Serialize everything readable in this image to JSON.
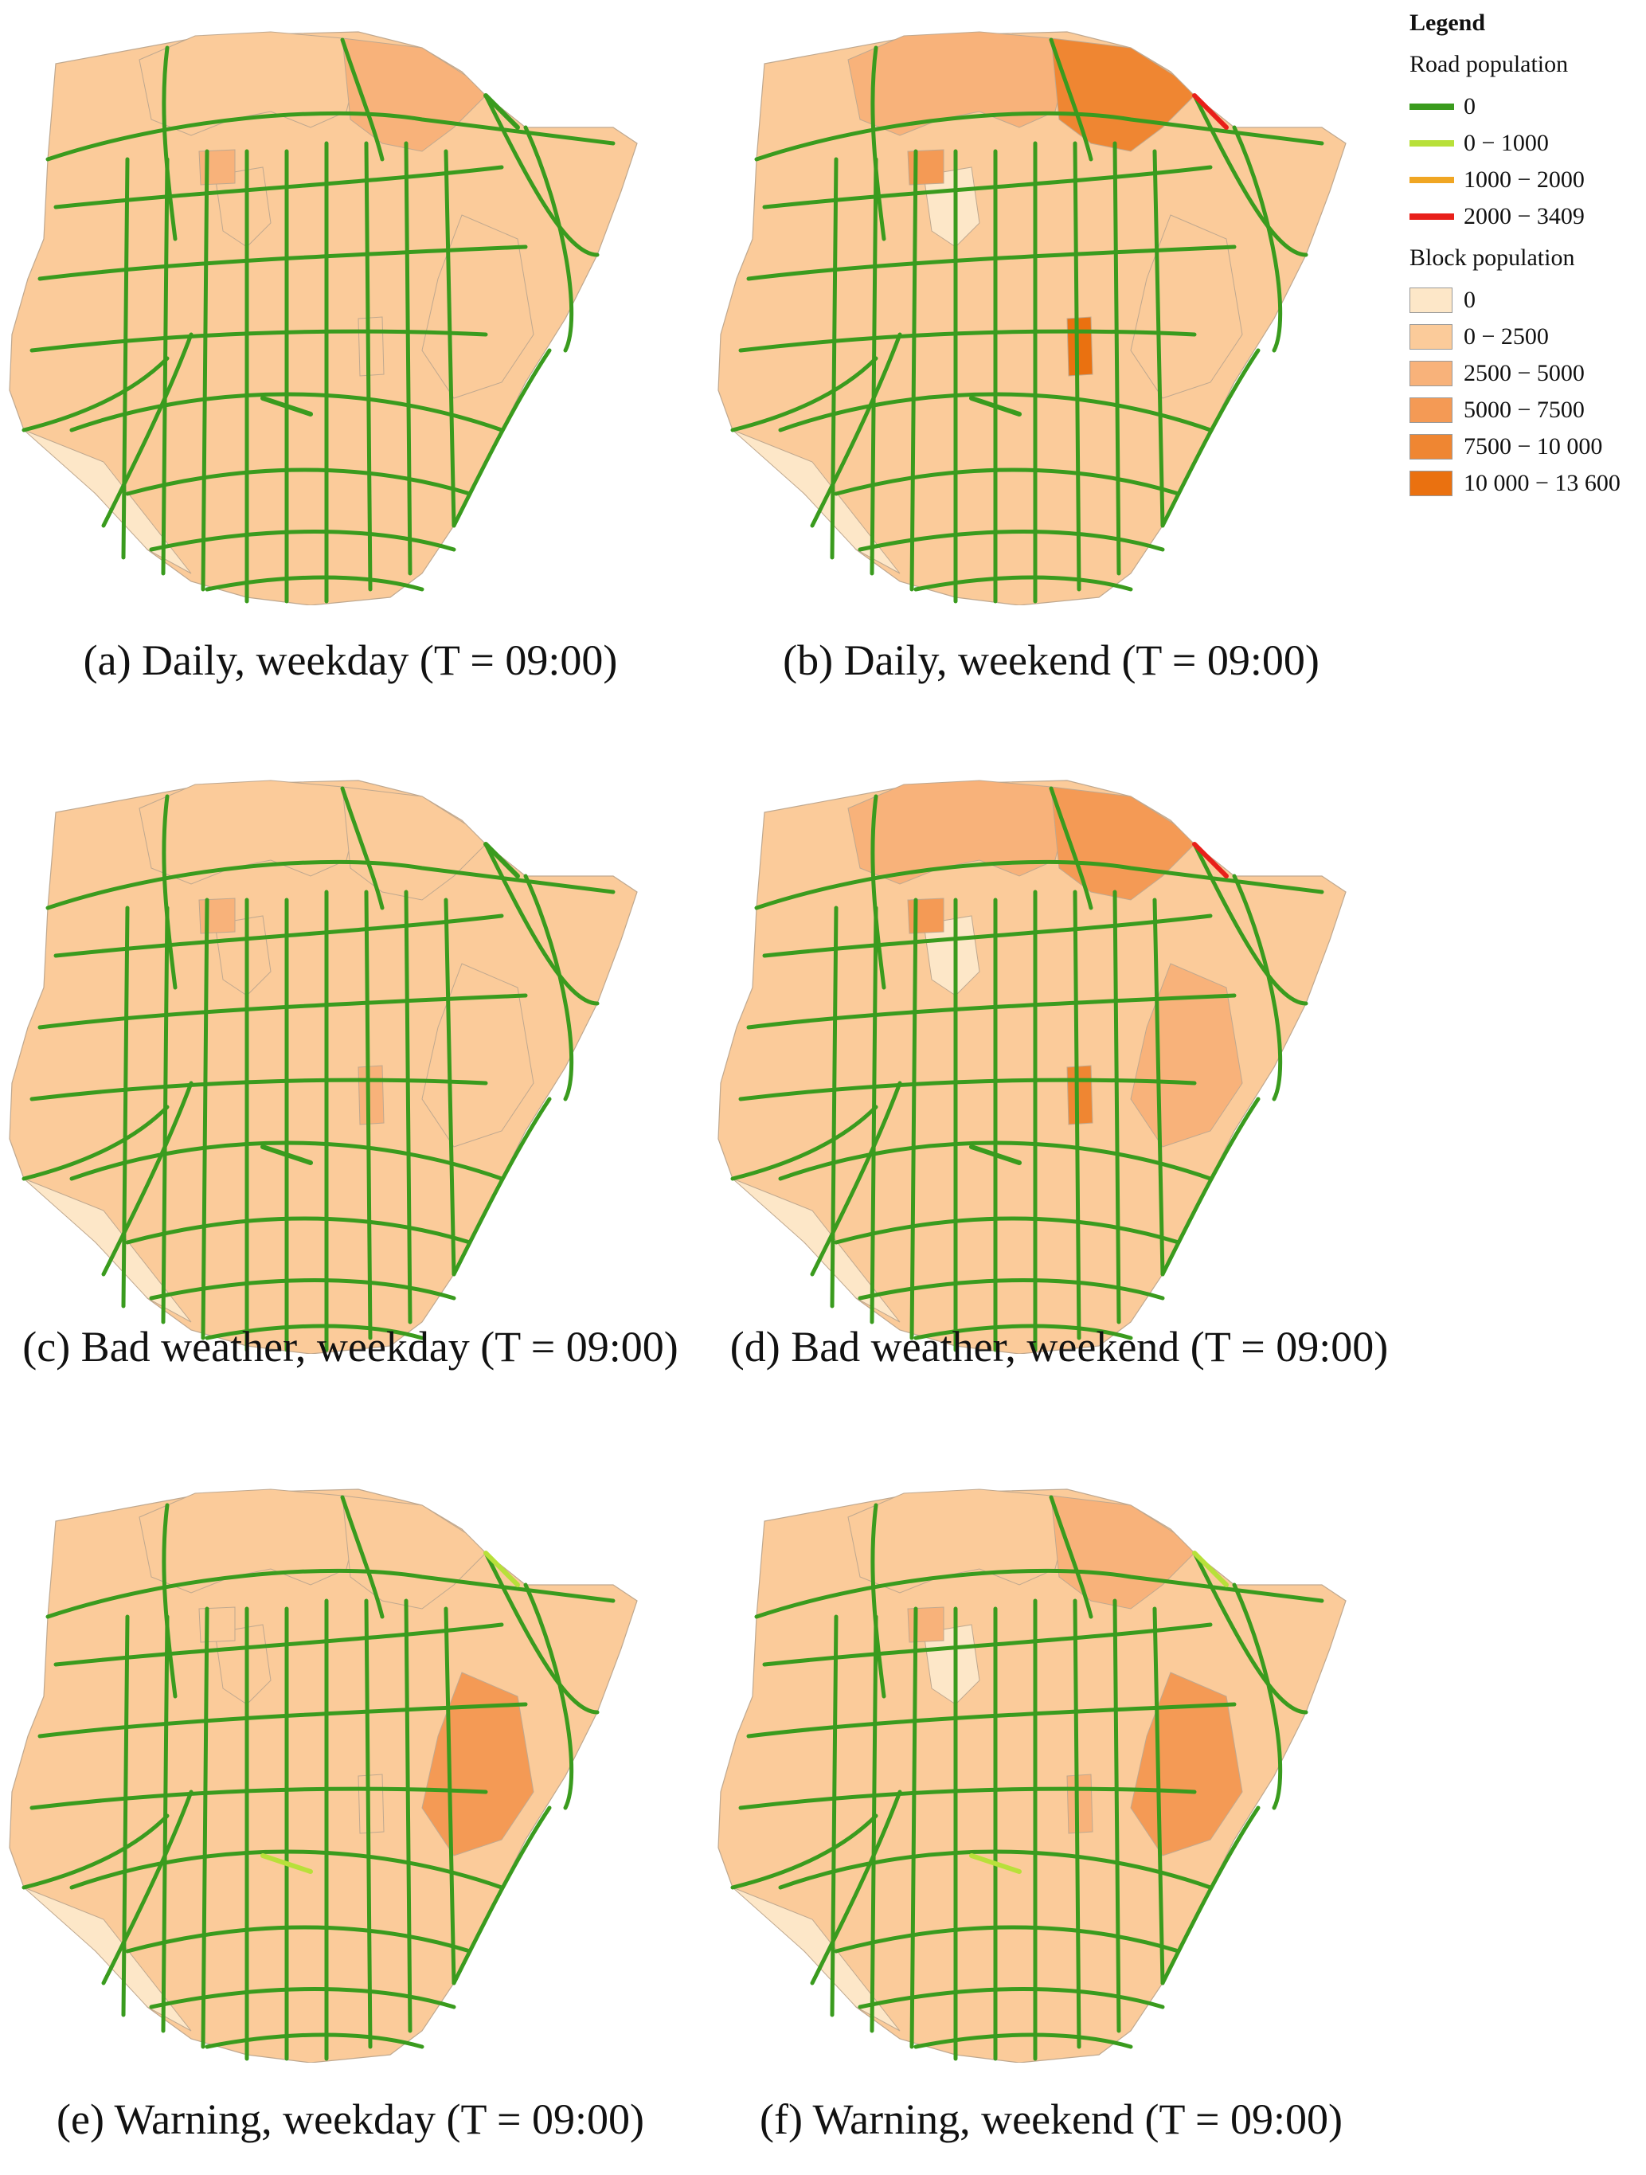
{
  "legend": {
    "title": "Legend",
    "road_section": "Road population",
    "block_section": "Block population",
    "road_classes": [
      {
        "label": "0",
        "color": "#3a9b1e"
      },
      {
        "label": "0 − 1000",
        "color": "#b8e03a"
      },
      {
        "label": "1000 − 2000",
        "color": "#f0a623"
      },
      {
        "label": "2000 − 3409",
        "color": "#e8201a"
      }
    ],
    "block_classes": [
      {
        "label": "0",
        "color": "#fde7c8"
      },
      {
        "label": "0 − 2500",
        "color": "#fbcb9a"
      },
      {
        "label": "2500 − 5000",
        "color": "#f8b27a"
      },
      {
        "label": "5000 − 7500",
        "color": "#f49a55"
      },
      {
        "label": "7500 − 10 000",
        "color": "#ef8632"
      },
      {
        "label": "10 000 − 13 600",
        "color": "#ea7110"
      }
    ]
  },
  "panels": [
    {
      "caption": "(a) Daily, weekday (T = 09:00)",
      "blocks": {
        "north": 1,
        "northeast": 2,
        "center": 1,
        "southeast": 1,
        "hotspot1": 2,
        "hotspot2": 1
      },
      "roads": {
        "east_link": 0,
        "south_link": 0
      }
    },
    {
      "caption": "(b) Daily, weekend (T = 09:00)",
      "blocks": {
        "north": 2,
        "northeast": 4,
        "center": 0,
        "southeast": 1,
        "hotspot1": 3,
        "hotspot2": 5
      },
      "roads": {
        "east_link": 3,
        "south_link": 0
      }
    },
    {
      "caption": "(c) Bad weather, weekday (T = 09:00)",
      "blocks": {
        "north": 1,
        "northeast": 1,
        "center": 1,
        "southeast": 1,
        "hotspot1": 2,
        "hotspot2": 2
      },
      "roads": {
        "east_link": 0,
        "south_link": 0
      }
    },
    {
      "caption": "(d) Bad weather, weekend (T = 09:00)",
      "blocks": {
        "north": 2,
        "northeast": 3,
        "center": 0,
        "southeast": 2,
        "hotspot1": 3,
        "hotspot2": 4
      },
      "roads": {
        "east_link": 3,
        "south_link": 0
      }
    },
    {
      "caption": "(e) Warning, weekday (T = 09:00)",
      "blocks": {
        "north": 1,
        "northeast": 1,
        "center": 1,
        "southeast": 3,
        "hotspot1": 1,
        "hotspot2": 1
      },
      "roads": {
        "east_link": 1,
        "south_link": 1
      }
    },
    {
      "caption": "(f) Warning, weekend (T = 09:00)",
      "blocks": {
        "north": 1,
        "northeast": 2,
        "center": 0,
        "southeast": 3,
        "hotspot1": 2,
        "hotspot2": 2
      },
      "roads": {
        "east_link": 1,
        "south_link": 1
      }
    }
  ]
}
